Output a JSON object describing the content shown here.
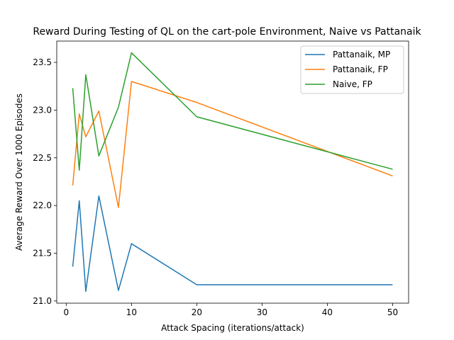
{
  "chart_data": {
    "type": "line",
    "title": "Reward During Testing of QL on the cart-pole Environment, Naive vs Pattanaik",
    "xlabel": "Attack Spacing (iterations/attack)",
    "ylabel": "Average Reward Over 1000 Episodes",
    "xlim": [
      -1.45,
      52.45
    ],
    "ylim": [
      20.977,
      23.723
    ],
    "xticks": [
      0,
      10,
      20,
      30,
      40,
      50
    ],
    "yticks": [
      21.0,
      21.5,
      22.0,
      22.5,
      23.0,
      23.5
    ],
    "xtick_labels": [
      "0",
      "10",
      "20",
      "30",
      "40",
      "50"
    ],
    "ytick_labels": [
      "21.0",
      "21.5",
      "22.0",
      "22.5",
      "23.0",
      "23.5"
    ],
    "grid": false,
    "legend_position": "top-right",
    "x": [
      1,
      2,
      3,
      5,
      8,
      10,
      20,
      50
    ],
    "series": [
      {
        "name": "Pattanaik, MP",
        "color": "#1f77b4",
        "values": [
          21.36,
          22.05,
          21.1,
          22.1,
          21.11,
          21.6,
          21.17,
          21.17
        ]
      },
      {
        "name": "Pattanaik, FP",
        "color": "#ff7f0e",
        "values": [
          22.21,
          22.96,
          22.72,
          22.99,
          21.98,
          23.3,
          23.08,
          22.31
        ]
      },
      {
        "name": "Naive, FP",
        "color": "#2ca02c",
        "values": [
          23.23,
          22.37,
          23.37,
          22.52,
          23.03,
          23.6,
          22.93,
          22.38
        ]
      }
    ]
  }
}
